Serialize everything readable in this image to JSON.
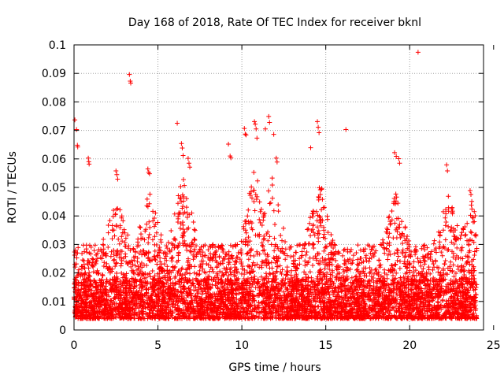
{
  "chart_data": {
    "type": "scatter",
    "title": "Day 168 of 2018, Rate Of TEC Index for receiver bknl",
    "xlabel": "GPS time / hours",
    "ylabel": "ROTI / TECUs",
    "xlim": [
      0,
      24
    ],
    "ylim": [
      0,
      0.1
    ],
    "xticks": [
      0,
      5,
      10,
      15,
      20,
      25
    ],
    "xtick_labels": [
      "0",
      "5",
      "10",
      "15",
      "20",
      "25"
    ],
    "yticks": [
      0,
      0.01,
      0.02,
      0.03,
      0.04,
      0.05,
      0.06,
      0.07,
      0.08,
      0.09,
      0.1
    ],
    "ytick_labels": [
      "0",
      "0.01",
      "0.02",
      "0.03",
      "0.04",
      "0.05",
      "0.06",
      "0.07",
      "0.08",
      "0.09",
      "0.1"
    ],
    "grid": true,
    "marker": "+",
    "color": "#ff0000",
    "series": [
      {
        "name": "ROTI",
        "points": [
          [
            0.05,
            0.0737
          ],
          [
            0.15,
            0.0703
          ],
          [
            0.2,
            0.0648
          ],
          [
            0.22,
            0.0642
          ],
          [
            0.85,
            0.0603
          ],
          [
            0.88,
            0.059
          ],
          [
            0.9,
            0.0582
          ],
          [
            2.5,
            0.0558
          ],
          [
            2.55,
            0.0545
          ],
          [
            2.6,
            0.0529
          ],
          [
            3.3,
            0.0896
          ],
          [
            3.35,
            0.0873
          ],
          [
            3.38,
            0.0866
          ],
          [
            4.4,
            0.0565
          ],
          [
            4.45,
            0.0553
          ],
          [
            4.5,
            0.0548
          ],
          [
            6.15,
            0.0725
          ],
          [
            6.4,
            0.0654
          ],
          [
            6.45,
            0.0638
          ],
          [
            6.5,
            0.0612
          ],
          [
            6.8,
            0.0602
          ],
          [
            6.85,
            0.0585
          ],
          [
            6.9,
            0.0571
          ],
          [
            9.2,
            0.0652
          ],
          [
            9.3,
            0.061
          ],
          [
            9.35,
            0.0604
          ],
          [
            10.15,
            0.0707
          ],
          [
            10.2,
            0.0687
          ],
          [
            10.25,
            0.0684
          ],
          [
            10.75,
            0.0731
          ],
          [
            10.8,
            0.0722
          ],
          [
            10.85,
            0.0705
          ],
          [
            10.9,
            0.0673
          ],
          [
            11.4,
            0.0705
          ],
          [
            11.6,
            0.0749
          ],
          [
            11.65,
            0.0728
          ],
          [
            11.9,
            0.0686
          ],
          [
            12.05,
            0.0603
          ],
          [
            12.1,
            0.0589
          ],
          [
            14.1,
            0.0639
          ],
          [
            14.5,
            0.0731
          ],
          [
            14.55,
            0.0711
          ],
          [
            14.6,
            0.0692
          ],
          [
            16.2,
            0.0703
          ],
          [
            19.1,
            0.0622
          ],
          [
            19.2,
            0.0609
          ],
          [
            19.35,
            0.0601
          ],
          [
            19.4,
            0.0585
          ],
          [
            20.5,
            0.0974
          ],
          [
            22.2,
            0.0579
          ],
          [
            22.25,
            0.0558
          ],
          [
            23.6,
            0.0489
          ],
          [
            23.65,
            0.0475
          ],
          [
            23.7,
            0.0451
          ]
        ],
        "dense_band": {
          "description": "thousands of points densely filling the range",
          "x_range": [
            0,
            24
          ],
          "typical_min": 0.004,
          "typical_max": 0.03,
          "peaks": [
            {
              "x": 2.5,
              "y_max": 0.047
            },
            {
              "x": 4.5,
              "y_max": 0.05
            },
            {
              "x": 6.5,
              "y_max": 0.056
            },
            {
              "x": 10.8,
              "y_max": 0.06
            },
            {
              "x": 11.8,
              "y_max": 0.055
            },
            {
              "x": 14.6,
              "y_max": 0.054
            },
            {
              "x": 19.2,
              "y_max": 0.05
            },
            {
              "x": 22.3,
              "y_max": 0.048
            },
            {
              "x": 23.7,
              "y_max": 0.045
            }
          ]
        }
      }
    ]
  }
}
